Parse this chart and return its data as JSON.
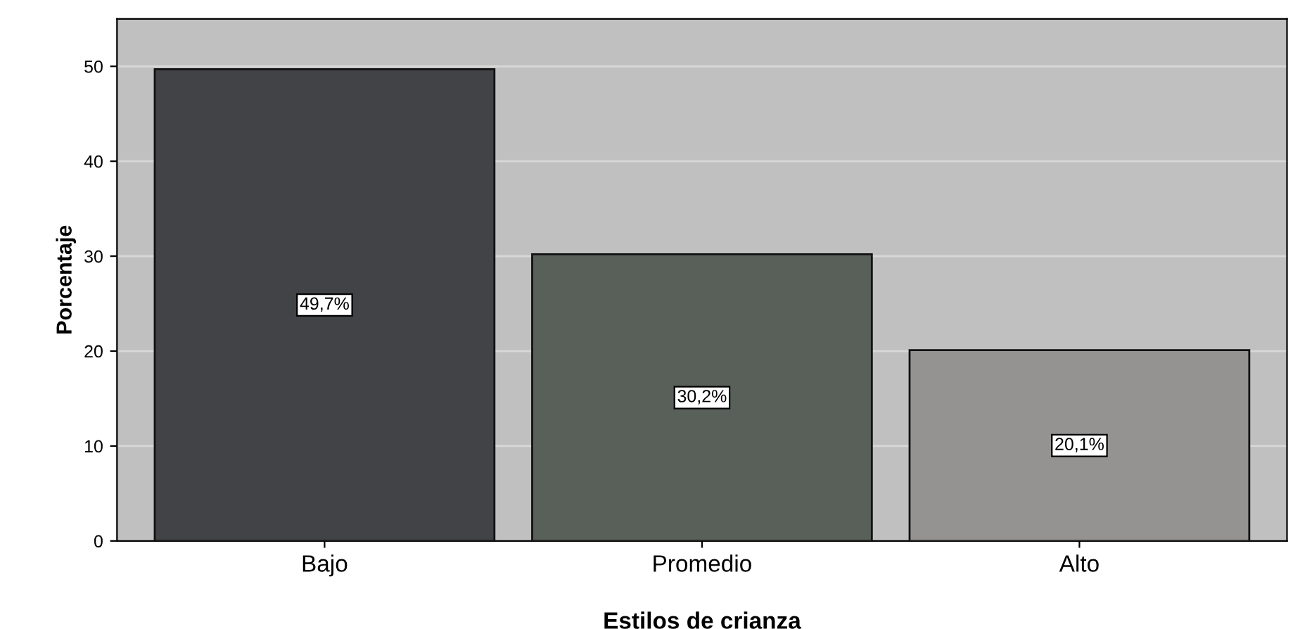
{
  "chart_data": {
    "type": "bar",
    "xlabel": "Estilos de crianza",
    "ylabel": "Porcentaje",
    "categories": [
      "Bajo",
      "Promedio",
      "Alto"
    ],
    "values": [
      49.7,
      30.2,
      20.1
    ],
    "value_labels": [
      "49,7%",
      "30,2%",
      "20,1%"
    ],
    "colors": [
      "#424346",
      "#586059",
      "#959391"
    ],
    "ylim": [
      0,
      55
    ],
    "yticks": [
      0,
      10,
      20,
      30,
      40,
      50
    ],
    "grid": "y"
  }
}
